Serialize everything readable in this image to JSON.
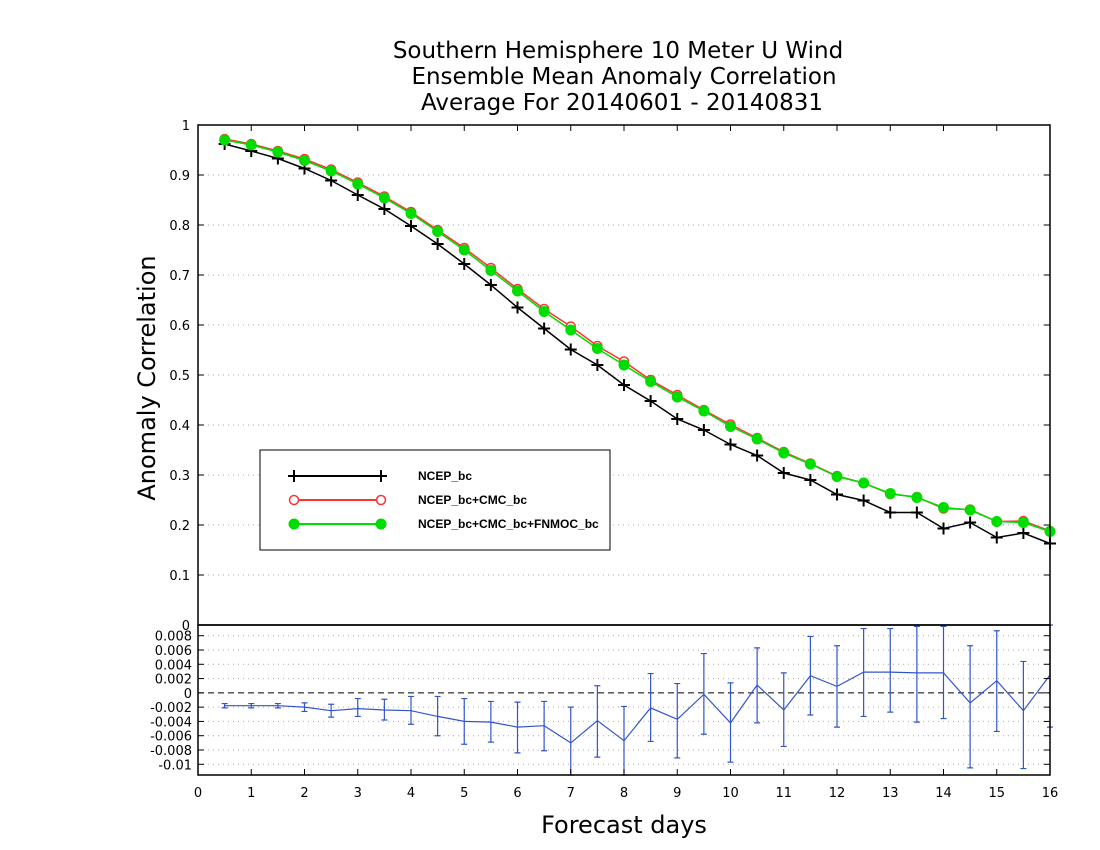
{
  "chart_data": [
    {
      "type": "line",
      "title": [
        "Southern Hemisphere 10 Meter U Wind",
        "Ensemble Mean Anomaly Correlation",
        "Average For 20140601 - 20140831"
      ],
      "xlabel": "Forecast days",
      "ylabel": "Anomaly Correlation",
      "xlim": [
        0,
        16
      ],
      "ylim": [
        0,
        1
      ],
      "x_ticks": [
        "0",
        "1",
        "2",
        "3",
        "4",
        "5",
        "6",
        "7",
        "8",
        "9",
        "10",
        "11",
        "12",
        "13",
        "14",
        "15",
        "16"
      ],
      "y_ticks": [
        "0",
        "0.1",
        "0.2",
        "0.3",
        "0.4",
        "0.5",
        "0.6",
        "0.7",
        "0.8",
        "0.9",
        "1"
      ],
      "grid": "horizontal dotted",
      "legend_placement": "center-left",
      "x": [
        0.5,
        1,
        1.5,
        2,
        2.5,
        3,
        3.5,
        4,
        4.5,
        5,
        5.5,
        6,
        6.5,
        7,
        7.5,
        8,
        8.5,
        9,
        9.5,
        10,
        10.5,
        11,
        11.5,
        12,
        12.5,
        13,
        13.5,
        14,
        14.5,
        15,
        15.5,
        16
      ],
      "series": [
        {
          "name": "NCEP_bc",
          "color": "#000000",
          "marker": "plus",
          "values": [
            0.962,
            0.948,
            0.933,
            0.913,
            0.889,
            0.86,
            0.832,
            0.798,
            0.762,
            0.722,
            0.68,
            0.635,
            0.593,
            0.551,
            0.52,
            0.48,
            0.448,
            0.412,
            0.39,
            0.361,
            0.339,
            0.304,
            0.29,
            0.261,
            0.249,
            0.225,
            0.225,
            0.193,
            0.205,
            0.175,
            0.184,
            0.163
          ]
        },
        {
          "name": "NCEP_bc+CMC_bc",
          "color": "#ff3333",
          "marker": "open-circle",
          "values": [
            0.972,
            0.962,
            0.948,
            0.932,
            0.911,
            0.885,
            0.857,
            0.826,
            0.79,
            0.754,
            0.714,
            0.672,
            0.632,
            0.597,
            0.558,
            0.527,
            0.49,
            0.46,
            0.43,
            0.401,
            0.374,
            0.346,
            0.323,
            0.298,
            0.284,
            0.262,
            0.256,
            0.233,
            0.231,
            0.207,
            0.208,
            0.188
          ]
        },
        {
          "name": "NCEP_bc+CMC_bc+FNMOC_bc",
          "color": "#00dd00",
          "marker": "filled-circle",
          "values": [
            0.97,
            0.96,
            0.946,
            0.929,
            0.908,
            0.882,
            0.854,
            0.823,
            0.787,
            0.75,
            0.709,
            0.668,
            0.627,
            0.59,
            0.553,
            0.52,
            0.487,
            0.456,
            0.428,
            0.397,
            0.372,
            0.344,
            0.322,
            0.297,
            0.284,
            0.263,
            0.255,
            0.235,
            0.23,
            0.207,
            0.205,
            0.187
          ]
        }
      ]
    },
    {
      "type": "line",
      "title": "",
      "xlim": [
        0,
        16
      ],
      "ylim": [
        -0.0115,
        0.0095
      ],
      "y_ticks": [
        "0.008",
        "0.006",
        "0.004",
        "0.002",
        "0",
        "-0.002",
        "-0.004",
        "-0.006",
        "-0.008",
        "-0.01"
      ],
      "zero_line": "dashed",
      "color": "#3355cc",
      "x": [
        0.5,
        1,
        1.5,
        2,
        2.5,
        3,
        3.5,
        4,
        4.5,
        5,
        5.5,
        6,
        6.5,
        7,
        7.5,
        8,
        8.5,
        9,
        9.5,
        10,
        10.5,
        11,
        11.5,
        12,
        12.5,
        13,
        13.5,
        14,
        14.5,
        15,
        15.5,
        16
      ],
      "values": [
        -0.0018,
        -0.0018,
        -0.0018,
        -0.002,
        -0.0025,
        -0.0022,
        -0.0024,
        -0.0025,
        -0.0033,
        -0.004,
        -0.0041,
        -0.0048,
        -0.0046,
        -0.007,
        -0.0039,
        -0.0067,
        -0.0021,
        -0.0037,
        -0.0002,
        -0.0042,
        0.0011,
        -0.0024,
        0.0024,
        0.0009,
        0.0029,
        0.0029,
        0.0028,
        0.0028,
        -0.0014,
        0.0017,
        -0.0025,
        0.0025
      ],
      "error_low": [
        -0.0021,
        -0.0021,
        -0.0021,
        -0.0026,
        -0.0034,
        -0.0033,
        -0.0038,
        -0.0044,
        -0.006,
        -0.0072,
        -0.0069,
        -0.0084,
        -0.0081,
        -0.0115,
        -0.009,
        -0.0115,
        -0.0068,
        -0.0091,
        -0.0058,
        -0.0097,
        -0.0042,
        -0.0075,
        -0.0031,
        -0.0048,
        -0.0033,
        -0.0027,
        -0.0041,
        -0.0036,
        -0.0105,
        -0.0054,
        -0.0106,
        -0.0048
      ],
      "error_high": [
        -0.0015,
        -0.0015,
        -0.0015,
        -0.0014,
        -0.0016,
        -0.0008,
        -0.0009,
        -0.0005,
        -0.0005,
        -0.0008,
        -0.0012,
        -0.0013,
        -0.0012,
        -0.002,
        0.001,
        -0.0019,
        0.0027,
        0.0013,
        0.0055,
        0.0014,
        0.0063,
        0.0028,
        0.0079,
        0.0066,
        0.009,
        0.009,
        0.0093,
        0.0093,
        0.0066,
        0.0087,
        0.0044,
        0.0099
      ]
    }
  ]
}
